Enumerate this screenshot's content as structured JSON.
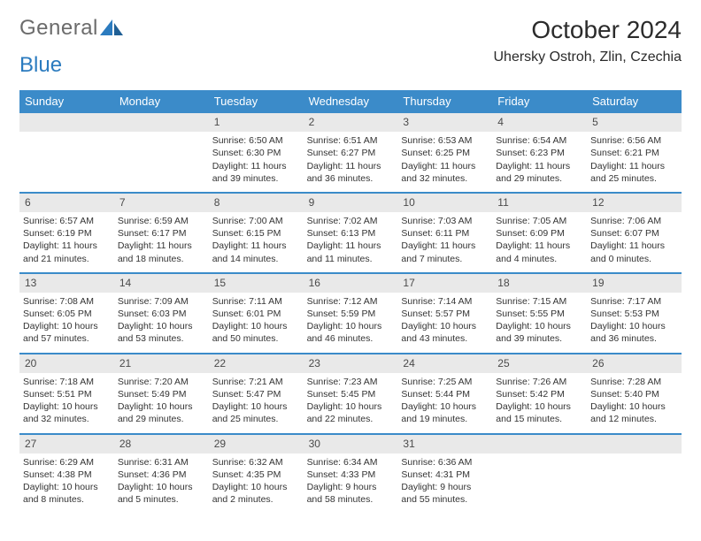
{
  "brand": {
    "part1": "General",
    "part2": "Blue"
  },
  "title": "October 2024",
  "location": "Uhersky Ostroh, Zlin, Czechia",
  "colors": {
    "header_bg": "#3b8bc9",
    "header_text": "#ffffff",
    "daybar_bg": "#e9e9e9",
    "row_border": "#3b8bc9",
    "page_bg": "#ffffff",
    "text": "#333333",
    "logo_gray": "#6b6b6b",
    "logo_blue": "#2b7bbf"
  },
  "day_headers": [
    "Sunday",
    "Monday",
    "Tuesday",
    "Wednesday",
    "Thursday",
    "Friday",
    "Saturday"
  ],
  "weeks": [
    [
      null,
      null,
      {
        "n": "1",
        "sr": "Sunrise: 6:50 AM",
        "ss": "Sunset: 6:30 PM",
        "dl": "Daylight: 11 hours and 39 minutes."
      },
      {
        "n": "2",
        "sr": "Sunrise: 6:51 AM",
        "ss": "Sunset: 6:27 PM",
        "dl": "Daylight: 11 hours and 36 minutes."
      },
      {
        "n": "3",
        "sr": "Sunrise: 6:53 AM",
        "ss": "Sunset: 6:25 PM",
        "dl": "Daylight: 11 hours and 32 minutes."
      },
      {
        "n": "4",
        "sr": "Sunrise: 6:54 AM",
        "ss": "Sunset: 6:23 PM",
        "dl": "Daylight: 11 hours and 29 minutes."
      },
      {
        "n": "5",
        "sr": "Sunrise: 6:56 AM",
        "ss": "Sunset: 6:21 PM",
        "dl": "Daylight: 11 hours and 25 minutes."
      }
    ],
    [
      {
        "n": "6",
        "sr": "Sunrise: 6:57 AM",
        "ss": "Sunset: 6:19 PM",
        "dl": "Daylight: 11 hours and 21 minutes."
      },
      {
        "n": "7",
        "sr": "Sunrise: 6:59 AM",
        "ss": "Sunset: 6:17 PM",
        "dl": "Daylight: 11 hours and 18 minutes."
      },
      {
        "n": "8",
        "sr": "Sunrise: 7:00 AM",
        "ss": "Sunset: 6:15 PM",
        "dl": "Daylight: 11 hours and 14 minutes."
      },
      {
        "n": "9",
        "sr": "Sunrise: 7:02 AM",
        "ss": "Sunset: 6:13 PM",
        "dl": "Daylight: 11 hours and 11 minutes."
      },
      {
        "n": "10",
        "sr": "Sunrise: 7:03 AM",
        "ss": "Sunset: 6:11 PM",
        "dl": "Daylight: 11 hours and 7 minutes."
      },
      {
        "n": "11",
        "sr": "Sunrise: 7:05 AM",
        "ss": "Sunset: 6:09 PM",
        "dl": "Daylight: 11 hours and 4 minutes."
      },
      {
        "n": "12",
        "sr": "Sunrise: 7:06 AM",
        "ss": "Sunset: 6:07 PM",
        "dl": "Daylight: 11 hours and 0 minutes."
      }
    ],
    [
      {
        "n": "13",
        "sr": "Sunrise: 7:08 AM",
        "ss": "Sunset: 6:05 PM",
        "dl": "Daylight: 10 hours and 57 minutes."
      },
      {
        "n": "14",
        "sr": "Sunrise: 7:09 AM",
        "ss": "Sunset: 6:03 PM",
        "dl": "Daylight: 10 hours and 53 minutes."
      },
      {
        "n": "15",
        "sr": "Sunrise: 7:11 AM",
        "ss": "Sunset: 6:01 PM",
        "dl": "Daylight: 10 hours and 50 minutes."
      },
      {
        "n": "16",
        "sr": "Sunrise: 7:12 AM",
        "ss": "Sunset: 5:59 PM",
        "dl": "Daylight: 10 hours and 46 minutes."
      },
      {
        "n": "17",
        "sr": "Sunrise: 7:14 AM",
        "ss": "Sunset: 5:57 PM",
        "dl": "Daylight: 10 hours and 43 minutes."
      },
      {
        "n": "18",
        "sr": "Sunrise: 7:15 AM",
        "ss": "Sunset: 5:55 PM",
        "dl": "Daylight: 10 hours and 39 minutes."
      },
      {
        "n": "19",
        "sr": "Sunrise: 7:17 AM",
        "ss": "Sunset: 5:53 PM",
        "dl": "Daylight: 10 hours and 36 minutes."
      }
    ],
    [
      {
        "n": "20",
        "sr": "Sunrise: 7:18 AM",
        "ss": "Sunset: 5:51 PM",
        "dl": "Daylight: 10 hours and 32 minutes."
      },
      {
        "n": "21",
        "sr": "Sunrise: 7:20 AM",
        "ss": "Sunset: 5:49 PM",
        "dl": "Daylight: 10 hours and 29 minutes."
      },
      {
        "n": "22",
        "sr": "Sunrise: 7:21 AM",
        "ss": "Sunset: 5:47 PM",
        "dl": "Daylight: 10 hours and 25 minutes."
      },
      {
        "n": "23",
        "sr": "Sunrise: 7:23 AM",
        "ss": "Sunset: 5:45 PM",
        "dl": "Daylight: 10 hours and 22 minutes."
      },
      {
        "n": "24",
        "sr": "Sunrise: 7:25 AM",
        "ss": "Sunset: 5:44 PM",
        "dl": "Daylight: 10 hours and 19 minutes."
      },
      {
        "n": "25",
        "sr": "Sunrise: 7:26 AM",
        "ss": "Sunset: 5:42 PM",
        "dl": "Daylight: 10 hours and 15 minutes."
      },
      {
        "n": "26",
        "sr": "Sunrise: 7:28 AM",
        "ss": "Sunset: 5:40 PM",
        "dl": "Daylight: 10 hours and 12 minutes."
      }
    ],
    [
      {
        "n": "27",
        "sr": "Sunrise: 6:29 AM",
        "ss": "Sunset: 4:38 PM",
        "dl": "Daylight: 10 hours and 8 minutes."
      },
      {
        "n": "28",
        "sr": "Sunrise: 6:31 AM",
        "ss": "Sunset: 4:36 PM",
        "dl": "Daylight: 10 hours and 5 minutes."
      },
      {
        "n": "29",
        "sr": "Sunrise: 6:32 AM",
        "ss": "Sunset: 4:35 PM",
        "dl": "Daylight: 10 hours and 2 minutes."
      },
      {
        "n": "30",
        "sr": "Sunrise: 6:34 AM",
        "ss": "Sunset: 4:33 PM",
        "dl": "Daylight: 9 hours and 58 minutes."
      },
      {
        "n": "31",
        "sr": "Sunrise: 6:36 AM",
        "ss": "Sunset: 4:31 PM",
        "dl": "Daylight: 9 hours and 55 minutes."
      },
      null,
      null
    ]
  ]
}
